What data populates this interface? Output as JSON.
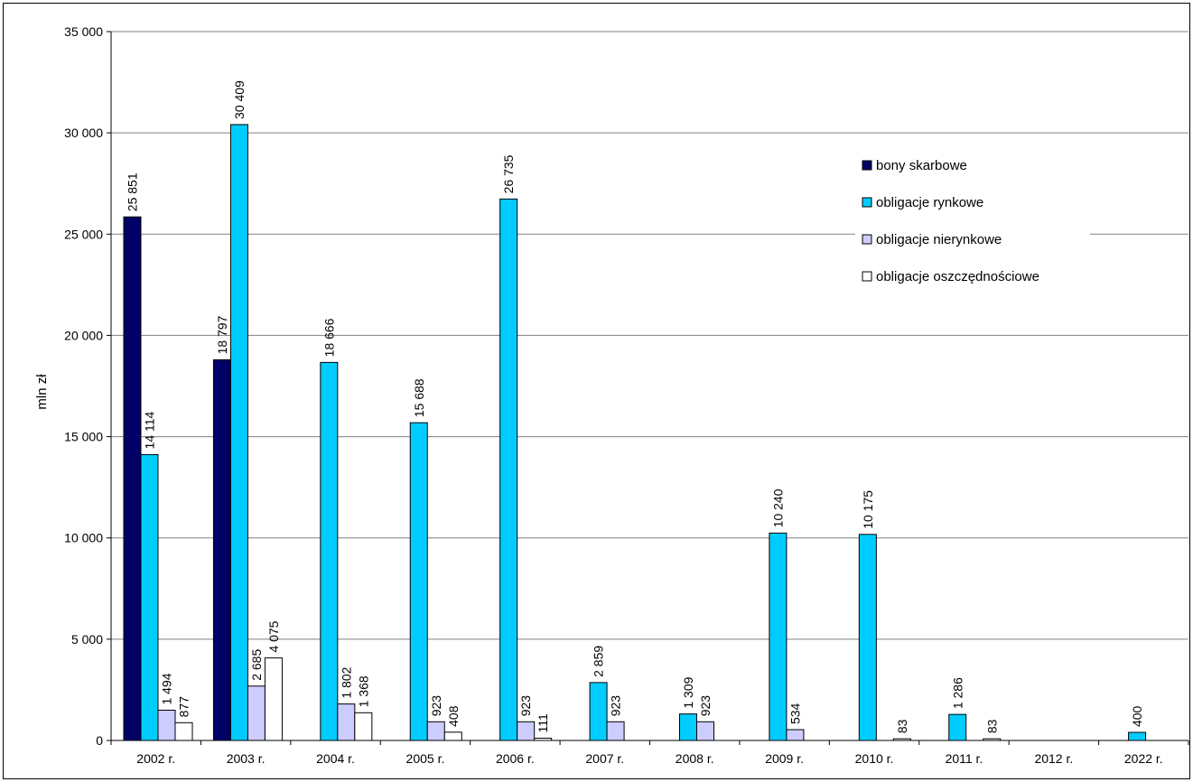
{
  "chart_data": {
    "type": "bar",
    "title": "",
    "xlabel": "",
    "ylabel": "mln zł",
    "ylim": [
      0,
      35000
    ],
    "yticks": [
      0,
      5000,
      10000,
      15000,
      20000,
      25000,
      30000,
      35000
    ],
    "ytick_labels": [
      "0",
      "5 000",
      "10 000",
      "15 000",
      "20 000",
      "25 000",
      "30 000",
      "35 000"
    ],
    "grid": true,
    "legend_position": "top-right",
    "categories": [
      "2002 r.",
      "2003 r.",
      "2004 r.",
      "2005 r.",
      "2006 r.",
      "2007 r.",
      "2008 r.",
      "2009 r.",
      "2010 r.",
      "2011 r.",
      "2012 r.",
      "2022 r."
    ],
    "series": [
      {
        "name": "bony skarbowe",
        "color": "#000066",
        "values": [
          25851,
          18797,
          null,
          null,
          null,
          null,
          null,
          null,
          null,
          null,
          null,
          null
        ],
        "labels": [
          "25 851",
          "18 797",
          null,
          null,
          null,
          null,
          null,
          null,
          null,
          null,
          null,
          null
        ]
      },
      {
        "name": "obligacje rynkowe",
        "color": "#00CCFF",
        "values": [
          14114,
          30409,
          18666,
          15688,
          26735,
          2859,
          1309,
          10240,
          10175,
          1286,
          null,
          400
        ],
        "labels": [
          "14 114",
          "30 409",
          "18 666",
          "15 688",
          "26 735",
          "2 859",
          "1 309",
          "10 240",
          "10 175",
          "1 286",
          null,
          "400"
        ]
      },
      {
        "name": "obligacje nierynkowe",
        "color": "#CCCCFF",
        "values": [
          1494,
          2685,
          1802,
          923,
          923,
          923,
          923,
          534,
          null,
          null,
          null,
          null
        ],
        "labels": [
          "1 494",
          "2 685",
          "1 802",
          "923",
          "923",
          "923",
          "923",
          "534",
          null,
          null,
          null,
          null
        ]
      },
      {
        "name": "obligacje oszczędnościowe",
        "color": "#FFFFFF",
        "values": [
          877,
          4075,
          1368,
          408,
          111,
          null,
          null,
          null,
          83,
          83,
          null,
          null
        ],
        "labels": [
          "877",
          "4 075",
          "1 368",
          "408",
          "111",
          null,
          null,
          null,
          "83",
          "83",
          null,
          null
        ]
      }
    ]
  }
}
